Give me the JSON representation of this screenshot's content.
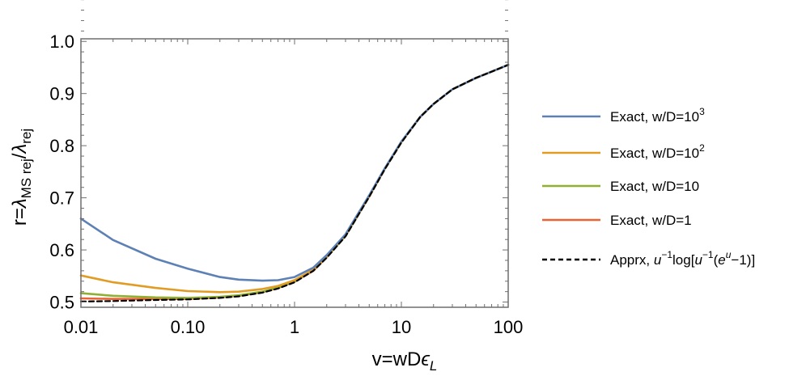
{
  "chart_data": {
    "type": "line",
    "title": "",
    "xlabel": {
      "base": "v=wD",
      "eps": "ϵ",
      "sub": "L"
    },
    "ylabel": {
      "prefix": "r=",
      "lam1": "λ",
      "sub1": "MS rej",
      "slash": "/",
      "lam2": "λ",
      "sub2": "rej"
    },
    "xscale": "log",
    "xlim": [
      0.01,
      100
    ],
    "ylim": [
      0.49,
      1.005
    ],
    "xticks": [
      {
        "value": 0.01,
        "label": "0.01"
      },
      {
        "value": 0.1,
        "label": "0.10"
      },
      {
        "value": 1,
        "label": "1"
      },
      {
        "value": 10,
        "label": "10"
      },
      {
        "value": 100,
        "label": "100"
      }
    ],
    "yticks": [
      {
        "value": 0.5,
        "label": "0.5"
      },
      {
        "value": 0.6,
        "label": "0.6"
      },
      {
        "value": 0.7,
        "label": "0.7"
      },
      {
        "value": 0.8,
        "label": "0.8"
      },
      {
        "value": 0.9,
        "label": "0.9"
      },
      {
        "value": 1.0,
        "label": "1.0"
      }
    ],
    "grid": false,
    "legend_position": "right",
    "series": [
      {
        "legend": {
          "text": "Exact, w/D=10",
          "sup": "3"
        },
        "color": "#5e81b5",
        "dash": false,
        "x": [
          0.01,
          0.02,
          0.05,
          0.1,
          0.2,
          0.3,
          0.5,
          0.7,
          1,
          1.5,
          2,
          3,
          5,
          7,
          10,
          15,
          20,
          30,
          50,
          70,
          100
        ],
        "y": [
          0.66,
          0.619,
          0.583,
          0.564,
          0.548,
          0.543,
          0.541,
          0.542,
          0.548,
          0.566,
          0.59,
          0.63,
          0.705,
          0.757,
          0.808,
          0.855,
          0.88,
          0.908,
          0.93,
          0.942,
          0.955
        ]
      },
      {
        "legend": {
          "text": "Exact, w/D=10",
          "sup": "2"
        },
        "color": "#e19c24",
        "dash": false,
        "x": [
          0.01,
          0.02,
          0.05,
          0.1,
          0.2,
          0.3,
          0.5,
          0.7,
          1,
          1.5,
          2,
          3,
          5,
          7,
          10,
          15,
          20,
          30,
          50,
          70,
          100
        ],
        "y": [
          0.551,
          0.538,
          0.527,
          0.521,
          0.519,
          0.52,
          0.525,
          0.531,
          0.542,
          0.562,
          0.588,
          0.628,
          0.703,
          0.756,
          0.807,
          0.855,
          0.88,
          0.908,
          0.93,
          0.942,
          0.955
        ]
      },
      {
        "legend": {
          "text": "Exact, w/D=10",
          "sup": ""
        },
        "color": "#8fb032",
        "dash": false,
        "x": [
          0.01,
          0.02,
          0.05,
          0.1,
          0.2,
          0.3,
          0.5,
          0.7,
          1,
          1.5,
          2,
          3,
          5,
          7,
          10,
          15,
          20,
          30,
          50,
          70,
          100
        ],
        "y": [
          0.517,
          0.512,
          0.509,
          0.508,
          0.51,
          0.513,
          0.52,
          0.528,
          0.54,
          0.561,
          0.587,
          0.627,
          0.703,
          0.756,
          0.807,
          0.855,
          0.88,
          0.908,
          0.93,
          0.942,
          0.955
        ]
      },
      {
        "legend": {
          "text": "Exact, w/D=1",
          "sup": ""
        },
        "color": "#eb6235",
        "dash": false,
        "x": [
          0.01,
          0.02,
          0.05,
          0.1,
          0.2,
          0.3,
          0.5,
          0.7,
          1,
          1.5,
          2,
          3,
          5,
          7,
          10,
          15,
          20,
          30,
          50,
          70,
          100
        ],
        "y": [
          0.507,
          0.506,
          0.506,
          0.506,
          0.509,
          0.512,
          0.519,
          0.527,
          0.539,
          0.56,
          0.586,
          0.627,
          0.703,
          0.756,
          0.807,
          0.855,
          0.88,
          0.908,
          0.93,
          0.942,
          0.955
        ]
      },
      {
        "legend": {
          "text": "Apprx, ",
          "u1": "u",
          "sup1": "−1",
          "mid": "log[",
          "u2": "u",
          "sup2": "−1",
          "paren": "(",
          "e": "e",
          "u3": "u",
          "tail": "−1)]"
        },
        "color": "#000000",
        "dash": true,
        "x": [
          0.01,
          0.02,
          0.05,
          0.1,
          0.2,
          0.3,
          0.5,
          0.7,
          1,
          1.5,
          2,
          3,
          5,
          7,
          10,
          15,
          20,
          30,
          50,
          70,
          100
        ],
        "y": [
          0.501,
          0.502,
          0.504,
          0.505,
          0.508,
          0.511,
          0.518,
          0.526,
          0.538,
          0.56,
          0.585,
          0.626,
          0.702,
          0.755,
          0.806,
          0.855,
          0.88,
          0.908,
          0.93,
          0.942,
          0.955
        ]
      }
    ]
  }
}
